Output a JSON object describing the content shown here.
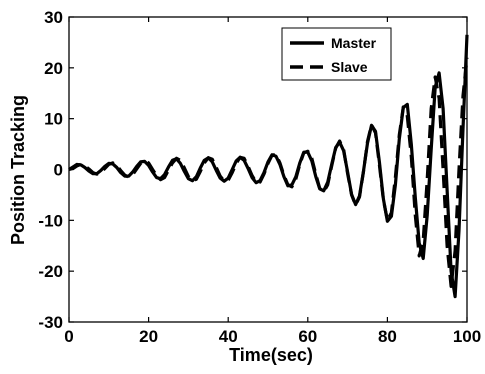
{
  "chart_data": {
    "type": "line",
    "title": "",
    "xlabel": "Time(sec)",
    "ylabel": "Position Tracking",
    "xlim": [
      0,
      100
    ],
    "ylim": [
      -30,
      30
    ],
    "xticks": [
      0,
      20,
      40,
      60,
      80,
      100
    ],
    "yticks": [
      -30,
      -20,
      -10,
      0,
      10,
      20,
      30
    ],
    "xtick_labels": [
      "0",
      "20",
      "40",
      "60",
      "80",
      "100"
    ],
    "ytick_labels": [
      "-30",
      "-20",
      "-10",
      "0",
      "10",
      "20",
      "30"
    ],
    "grid": false,
    "legend": {
      "position": "top-right",
      "entries": [
        "Master",
        "Slave"
      ]
    },
    "series": [
      {
        "name": "Master",
        "style": "solid",
        "color": "#000000",
        "x": [
          0,
          1,
          2,
          3,
          4,
          5,
          6,
          7,
          8,
          9,
          10,
          11,
          12,
          13,
          14,
          15,
          16,
          17,
          18,
          19,
          20,
          21,
          22,
          23,
          24,
          25,
          26,
          27,
          28,
          29,
          30,
          31,
          32,
          33,
          34,
          35,
          36,
          37,
          38,
          39,
          40,
          41,
          42,
          43,
          44,
          45,
          46,
          47,
          48,
          49,
          50,
          51,
          52,
          53,
          54,
          55,
          56,
          57,
          58,
          59,
          60,
          61,
          62,
          63,
          64,
          65,
          66,
          67,
          68,
          69,
          70,
          71,
          72,
          73,
          74,
          75,
          76,
          77,
          78,
          79,
          80,
          81,
          82,
          83,
          84,
          85,
          86,
          87,
          88,
          89,
          90,
          91,
          92,
          93,
          94,
          95,
          96,
          97,
          98,
          99,
          100
        ],
        "y": [
          0,
          0.5,
          1.0,
          0.9,
          0.4,
          -0.3,
          -0.8,
          -0.8,
          -0.2,
          0.6,
          1.2,
          1.1,
          0.4,
          -0.6,
          -1.3,
          -1.3,
          -0.5,
          0.6,
          1.5,
          1.6,
          0.8,
          -0.5,
          -1.6,
          -1.8,
          -1.0,
          0.5,
          1.8,
          2.1,
          1.2,
          -0.4,
          -1.8,
          -2.2,
          -1.4,
          0.3,
          1.8,
          2.3,
          1.5,
          -0.2,
          -1.7,
          -2.3,
          -1.7,
          0,
          1.7,
          2.4,
          1.8,
          0.2,
          -1.6,
          -2.6,
          -2.2,
          -0.6,
          1.5,
          2.9,
          2.6,
          1.0,
          -1.4,
          -3.2,
          -3.0,
          -1.4,
          1.3,
          3.4,
          3.4,
          1.7,
          -1.4,
          -3.8,
          -4.2,
          -2.5,
          1.0,
          4.3,
          5.4,
          3.7,
          -0.5,
          -4.9,
          -6.9,
          -5.2,
          -0.3,
          5.2,
          8.7,
          7.5,
          1.5,
          -5.8,
          -10.2,
          -9.2,
          -3.0,
          6.0,
          12.2,
          12.8,
          5.0,
          -5.5,
          -14.5,
          -17.5,
          -9.0,
          4.0,
          16.2,
          19.0,
          12.0,
          -4.0,
          -20.0,
          -25.0,
          -12.0,
          8.0,
          26.5
        ]
      },
      {
        "name": "Slave",
        "style": "dashed",
        "color": "#000000",
        "x": [
          0,
          1,
          2,
          3,
          4,
          5,
          6,
          7,
          8,
          9,
          10,
          11,
          12,
          13,
          14,
          15,
          16,
          17,
          18,
          19,
          20,
          21,
          22,
          23,
          24,
          25,
          26,
          27,
          28,
          29,
          30,
          31,
          32,
          33,
          34,
          35,
          36,
          37,
          38,
          39,
          40,
          41,
          42,
          43,
          44,
          45,
          46,
          47,
          48,
          49,
          50,
          51,
          52,
          53,
          54,
          55,
          56,
          57,
          58,
          59,
          60,
          61,
          62,
          63,
          64,
          65,
          66,
          67,
          68,
          69,
          70,
          71,
          72,
          73,
          74,
          75,
          76,
          77,
          78,
          79,
          80,
          81,
          82,
          83,
          84,
          85,
          86,
          87,
          88,
          89,
          90,
          91,
          92,
          93,
          94,
          95,
          96,
          97,
          98,
          99,
          100
        ],
        "y": [
          0,
          0.2,
          0.7,
          1.0,
          0.7,
          0.1,
          -0.6,
          -0.9,
          -0.6,
          0.2,
          1.0,
          1.3,
          0.8,
          -0.2,
          -1.1,
          -1.5,
          -1.0,
          0.1,
          1.2,
          1.7,
          1.3,
          0,
          -1.2,
          -2.0,
          -1.6,
          -0.1,
          1.3,
          2.2,
          1.8,
          0.3,
          -1.4,
          -2.2,
          -1.9,
          -0.4,
          1.3,
          2.3,
          2.0,
          0.4,
          -1.3,
          -2.3,
          -2.1,
          -0.6,
          1.2,
          2.4,
          2.2,
          0.6,
          -1.2,
          -2.5,
          -2.5,
          -0.9,
          1.2,
          2.8,
          3.0,
          1.3,
          -1.1,
          -3.0,
          -3.4,
          -1.8,
          1.0,
          3.3,
          3.6,
          2.2,
          -0.9,
          -3.7,
          -4.4,
          -3.0,
          0.7,
          4.2,
          5.6,
          4.0,
          -0.8,
          -5.0,
          -7.0,
          -5.4,
          -0.4,
          5.5,
          8.8,
          7.2,
          0.9,
          -6.0,
          -10.0,
          -8.5,
          -1.5,
          6.8,
          12.3,
          10.5,
          2.5,
          -9.0,
          -17.0,
          -14.0,
          -2.0,
          12.0,
          18.2,
          14.0,
          0,
          -15.0,
          -23.0,
          -16.0,
          0,
          14.5,
          22.0
        ]
      }
    ]
  }
}
